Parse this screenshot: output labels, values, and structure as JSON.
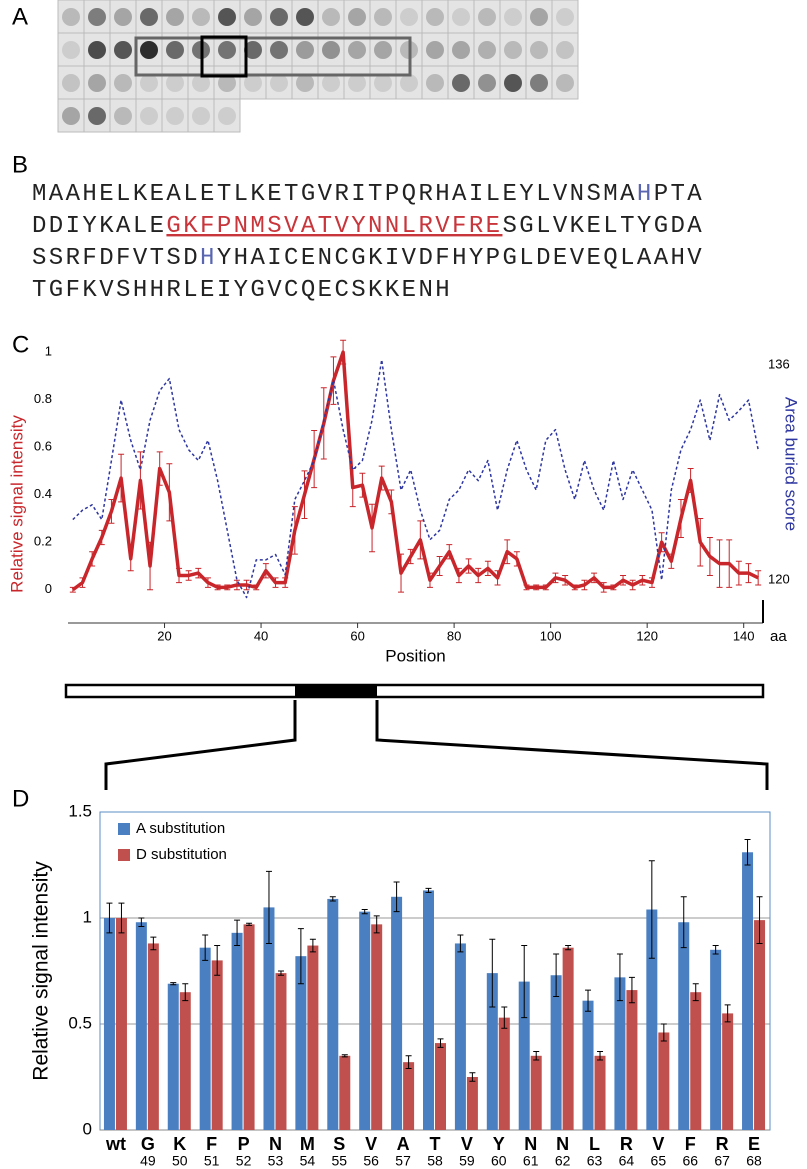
{
  "panel_labels": [
    "A",
    "B",
    "C",
    "D"
  ],
  "sequence": {
    "lines": [
      [
        {
          "text": "MAAHELKEALETLKETGVRITPQRHAILEYLVNSMA"
        },
        {
          "text": "H",
          "color": "#5a66b0"
        },
        {
          "text": "PTA"
        }
      ],
      [
        {
          "text": "DDIYKALE"
        },
        {
          "text": "GKFPNMSVATVYNNLRVFRE",
          "color": "#c8353a",
          "underline": true
        },
        {
          "text": "SGLVKELTYGDA"
        }
      ],
      [
        {
          "text": "SSRFDFVTSD"
        },
        {
          "text": "H",
          "color": "#5a66b0"
        },
        {
          "text": "YHAICENCGKIVDFHYPGLDEVEQLAAHV"
        }
      ],
      [
        {
          "text": "TGFKVSHHRLEIYGVCQECSKKENH"
        }
      ]
    ]
  },
  "chart_data": [
    {
      "type": "line",
      "xlabel": "Position",
      "xunit": "aa",
      "ylabel": "Relative signal intensity",
      "y2label": "Area buried score",
      "x": [
        1,
        3,
        5,
        7,
        9,
        11,
        13,
        15,
        17,
        19,
        21,
        23,
        25,
        27,
        29,
        31,
        33,
        35,
        37,
        39,
        41,
        43,
        45,
        47,
        49,
        51,
        53,
        55,
        57,
        59,
        61,
        63,
        65,
        67,
        69,
        71,
        73,
        75,
        77,
        79,
        81,
        83,
        85,
        87,
        89,
        91,
        93,
        95,
        97,
        99,
        101,
        103,
        105,
        107,
        109,
        111,
        113,
        115,
        117,
        119,
        121,
        123,
        125,
        127,
        129,
        131,
        133,
        135,
        137,
        139,
        141,
        143
      ],
      "series": [
        {
          "color": "#c8262b",
          "values": [
            0,
            0.03,
            0.13,
            0.22,
            0.33,
            0.47,
            0.13,
            0.46,
            0.1,
            0.51,
            0.41,
            0.06,
            0.06,
            0.07,
            0.03,
            0.01,
            0.01,
            0.02,
            0.02,
            0.01,
            0.08,
            0.03,
            0.03,
            0.25,
            0.4,
            0.55,
            0.7,
            0.88,
            1.0,
            0.43,
            0.44,
            0.26,
            0.47,
            0.37,
            0.07,
            0.14,
            0.21,
            0.04,
            0.1,
            0.16,
            0.06,
            0.1,
            0.06,
            0.09,
            0.05,
            0.16,
            0.13,
            0.01,
            0.01,
            0.01,
            0.05,
            0.04,
            0.01,
            0.02,
            0.05,
            0.01,
            0.01,
            0.04,
            0.02,
            0.04,
            0.03,
            0.2,
            0.12,
            0.3,
            0.46,
            0.2,
            0.14,
            0.11,
            0.11,
            0.07,
            0.07,
            0.05
          ],
          "errors": [
            0.01,
            0.02,
            0.03,
            0.03,
            0.05,
            0.1,
            0.05,
            0.12,
            0.1,
            0.07,
            0.12,
            0.03,
            0.02,
            0.02,
            0.02,
            0.01,
            0.01,
            0.02,
            0.02,
            0.01,
            0.03,
            0.02,
            0.02,
            0.1,
            0.1,
            0.12,
            0.15,
            0.1,
            0.05,
            0.08,
            0.05,
            0.1,
            0.05,
            0.05,
            0.08,
            0.03,
            0.08,
            0.03,
            0.04,
            0.03,
            0.03,
            0.03,
            0.03,
            0.03,
            0.03,
            0.05,
            0.03,
            0.01,
            0.01,
            0.01,
            0.02,
            0.02,
            0.01,
            0.02,
            0.02,
            0.02,
            0.01,
            0.02,
            0.02,
            0.02,
            0.02,
            0.04,
            0.03,
            0.08,
            0.05,
            0.1,
            0.08,
            0.1,
            0.1,
            0.05,
            0.04,
            0.03
          ]
        },
        {
          "color": "#2e36a0",
          "axis": "y2",
          "dashed": true,
          "values": [
            124.5,
            125.2,
            125.6,
            124.5,
            128.9,
            133.4,
            130.4,
            128.2,
            131.9,
            134.1,
            135,
            131.2,
            129.7,
            128.9,
            130.4,
            127.4,
            123.7,
            120,
            118.7,
            121.5,
            121.5,
            121.9,
            120.4,
            126,
            127.4,
            128.9,
            131.9,
            134.9,
            131.2,
            128.2,
            128.9,
            131.9,
            136.4,
            131.2,
            126.7,
            128.2,
            125.2,
            123,
            123.7,
            126,
            126.7,
            128.2,
            127.4,
            128.9,
            125.2,
            128.2,
            130.4,
            128.2,
            126.7,
            130.4,
            131.2,
            128.2,
            126,
            128.9,
            126.7,
            125.2,
            128.9,
            126,
            128.2,
            126.7,
            125.2,
            120,
            126.7,
            129.7,
            131.2,
            133.4,
            130.4,
            133.8,
            131.9,
            132.6,
            133.4,
            129.7
          ]
        }
      ],
      "xlim": [
        0,
        144
      ],
      "xticks": [
        20,
        40,
        60,
        80,
        100,
        120,
        140
      ],
      "ylim": [
        -0.14,
        1.03
      ],
      "yticks": [
        0,
        0.2,
        0.4,
        0.6,
        0.8,
        1
      ],
      "y2lim": [
        116.8,
        137.5
      ],
      "y2ticks": [
        120,
        136
      ]
    },
    {
      "type": "bar",
      "ylabel": "Relative signal intensity",
      "categories": [
        "wt",
        "G",
        "K",
        "F",
        "P",
        "N",
        "M",
        "S",
        "V",
        "A",
        "T",
        "V",
        "Y",
        "N",
        "N",
        "L",
        "R",
        "V",
        "F",
        "R",
        "E"
      ],
      "category_numbers": [
        null,
        49,
        50,
        51,
        52,
        53,
        54,
        55,
        56,
        57,
        58,
        59,
        60,
        61,
        62,
        63,
        64,
        65,
        66,
        67,
        68
      ],
      "series": [
        {
          "name": "A substitution",
          "color": "#4a7fc1",
          "values": [
            1.0,
            0.98,
            0.69,
            0.86,
            0.93,
            1.05,
            0.82,
            1.09,
            1.03,
            1.1,
            1.13,
            0.88,
            0.74,
            0.7,
            0.73,
            0.61,
            0.72,
            1.04,
            0.98,
            0.85,
            1.31
          ],
          "errors": [
            0.07,
            0.02,
            0.005,
            0.06,
            0.06,
            0.17,
            0.13,
            0.01,
            0.01,
            0.07,
            0.01,
            0.04,
            0.16,
            0.17,
            0.1,
            0.05,
            0.11,
            0.23,
            0.12,
            0.02,
            0.06
          ]
        },
        {
          "name": "D substitution",
          "color": "#c0504d",
          "values": [
            1.0,
            0.88,
            0.65,
            0.8,
            0.97,
            0.74,
            0.87,
            0.35,
            0.97,
            0.32,
            0.41,
            0.25,
            0.53,
            0.35,
            0.86,
            0.35,
            0.66,
            0.46,
            0.65,
            0.55,
            0.99
          ],
          "errors": [
            0.07,
            0.03,
            0.04,
            0.07,
            0.005,
            0.01,
            0.03,
            0.005,
            0.04,
            0.03,
            0.02,
            0.02,
            0.05,
            0.02,
            0.01,
            0.02,
            0.06,
            0.04,
            0.04,
            0.04,
            0.11
          ]
        }
      ],
      "ylim": [
        0,
        1.5
      ],
      "yticks": [
        0,
        0.5,
        1,
        1.5
      ],
      "grid": true,
      "legend": "upper-left"
    }
  ]
}
